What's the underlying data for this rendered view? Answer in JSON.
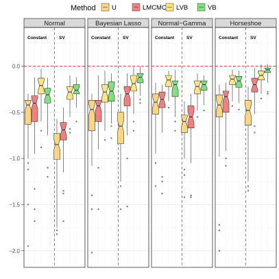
{
  "chart_data": {
    "type": "boxplot",
    "notched": true,
    "facets": [
      "Normal",
      "Bayesian Lasso",
      "Normal−Gamma",
      "Horseshoe"
    ],
    "groups": [
      "Constant",
      "SV"
    ],
    "y_ticks": [
      0.0,
      -0.5,
      -1.0,
      -1.5,
      -2.0
    ],
    "y_tick_labels": [
      "0.0",
      "−0.5",
      "−1.0",
      "−1.5",
      "−2.0"
    ],
    "ylim": [
      -2.18,
      0.42
    ],
    "reference_line": 0.0,
    "legend": {
      "title": "Method",
      "position": "top",
      "entries": [
        {
          "name": "U",
          "color": "#FFD580"
        },
        {
          "name": "LMCMC",
          "color": "#F08080"
        },
        {
          "name": "LVB",
          "color": "#FFE680"
        },
        {
          "name": "VB",
          "color": "#7FE07F"
        }
      ]
    },
    "boxes": [
      {
        "facet": 0,
        "group": 0,
        "method": 0,
        "q1": -0.63,
        "median": -0.42,
        "q3": -0.37,
        "lo": -1.0,
        "hi": -0.3,
        "outliers": [
          -1.05,
          -1.12,
          -1.5,
          -1.95
        ]
      },
      {
        "facet": 0,
        "group": 0,
        "method": 1,
        "q1": -0.6,
        "median": -0.4,
        "q3": -0.32,
        "lo": -0.95,
        "hi": -0.12,
        "outliers": [
          -1.33,
          -1.55,
          -1.68
        ]
      },
      {
        "facet": 0,
        "group": 0,
        "method": 2,
        "q1": -0.3,
        "median": -0.21,
        "q3": -0.13,
        "lo": -0.6,
        "hi": -0.03,
        "outliers": [
          -0.7,
          -0.88
        ]
      },
      {
        "facet": 0,
        "group": 0,
        "method": 3,
        "q1": -0.4,
        "median": -0.31,
        "q3": -0.24,
        "lo": -0.75,
        "hi": -0.13,
        "outliers": [
          -1.1,
          -1.2
        ]
      },
      {
        "facet": 0,
        "group": 1,
        "method": 0,
        "q1": -1.01,
        "median": -0.85,
        "q3": -0.73,
        "lo": -1.75,
        "hi": -0.57,
        "outliers": [
          -1.78,
          -1.82
        ]
      },
      {
        "facet": 0,
        "group": 1,
        "method": 1,
        "q1": -0.8,
        "median": -0.69,
        "q3": -0.61,
        "lo": -1.15,
        "hi": -0.45,
        "outliers": [
          -1.35,
          -1.38,
          -1.68
        ]
      },
      {
        "facet": 0,
        "group": 1,
        "method": 2,
        "q1": -0.36,
        "median": -0.28,
        "q3": -0.22,
        "lo": -0.55,
        "hi": -0.1,
        "outliers": [
          -0.68,
          -0.72
        ]
      },
      {
        "facet": 0,
        "group": 1,
        "method": 3,
        "q1": -0.3,
        "median": -0.26,
        "q3": -0.2,
        "lo": -0.45,
        "hi": -0.12,
        "outliers": [
          -0.6
        ]
      },
      {
        "facet": 1,
        "group": 0,
        "method": 0,
        "q1": -0.7,
        "median": -0.47,
        "q3": -0.37,
        "lo": -1.08,
        "hi": -0.3,
        "outliers": [
          -1.4,
          -1.55,
          -2.02
        ]
      },
      {
        "facet": 1,
        "group": 0,
        "method": 1,
        "q1": -0.6,
        "median": -0.43,
        "q3": -0.37,
        "lo": -0.9,
        "hi": -0.1,
        "outliers": [
          -1.1,
          -1.55
        ]
      },
      {
        "facet": 1,
        "group": 0,
        "method": 2,
        "q1": -0.39,
        "median": -0.28,
        "q3": -0.2,
        "lo": -0.7,
        "hi": -0.05,
        "outliers": [
          -0.8
        ]
      },
      {
        "facet": 1,
        "group": 0,
        "method": 3,
        "q1": -0.38,
        "median": -0.27,
        "q3": -0.17,
        "lo": -0.62,
        "hi": -0.08,
        "outliers": [
          -0.65,
          -0.78
        ]
      },
      {
        "facet": 1,
        "group": 1,
        "method": 0,
        "q1": -0.84,
        "median": -0.65,
        "q3": -0.5,
        "lo": -1.25,
        "hi": -0.3,
        "outliers": [
          -1.3,
          -1.55
        ]
      },
      {
        "facet": 1,
        "group": 1,
        "method": 1,
        "q1": -0.43,
        "median": -0.3,
        "q3": -0.22,
        "lo": -0.75,
        "hi": -0.08,
        "outliers": [
          -1.0,
          -1.52
        ]
      },
      {
        "facet": 1,
        "group": 1,
        "method": 2,
        "q1": -0.27,
        "median": -0.19,
        "q3": -0.1,
        "lo": -0.52,
        "hi": -0.01,
        "outliers": [
          -0.6,
          -0.7
        ]
      },
      {
        "facet": 1,
        "group": 1,
        "method": 3,
        "q1": -0.18,
        "median": -0.12,
        "q3": -0.08,
        "lo": -0.32,
        "hi": 0.0,
        "outliers": [
          -0.36,
          -0.4
        ]
      },
      {
        "facet": 2,
        "group": 0,
        "method": 0,
        "q1": -0.52,
        "median": -0.39,
        "q3": -0.3,
        "lo": -0.95,
        "hi": -0.18,
        "outliers": [
          -1.05,
          -1.3
        ]
      },
      {
        "facet": 2,
        "group": 0,
        "method": 1,
        "q1": -0.45,
        "median": -0.36,
        "q3": -0.28,
        "lo": -0.72,
        "hi": -0.2,
        "outliers": [
          -1.2,
          -1.25,
          -1.38
        ]
      },
      {
        "facet": 2,
        "group": 0,
        "method": 2,
        "q1": -0.22,
        "median": -0.15,
        "q3": -0.1,
        "lo": -0.38,
        "hi": -0.05,
        "outliers": [
          -0.45
        ]
      },
      {
        "facet": 2,
        "group": 0,
        "method": 3,
        "q1": -0.33,
        "median": -0.2,
        "q3": -0.16,
        "lo": -0.55,
        "hi": -0.04,
        "outliers": [
          -0.6,
          -0.7
        ]
      },
      {
        "facet": 2,
        "group": 1,
        "method": 0,
        "q1": -0.72,
        "median": -0.6,
        "q3": -0.53,
        "lo": -1.0,
        "hi": -0.38,
        "outliers": [
          -1.12,
          -1.18,
          -1.42
        ]
      },
      {
        "facet": 2,
        "group": 1,
        "method": 1,
        "q1": -0.67,
        "median": -0.55,
        "q3": -0.43,
        "lo": -1.05,
        "hi": -0.3,
        "outliers": [
          -1.4,
          -1.42
        ]
      },
      {
        "facet": 2,
        "group": 1,
        "method": 2,
        "q1": -0.3,
        "median": -0.22,
        "q3": -0.16,
        "lo": -0.48,
        "hi": -0.08,
        "outliers": [
          -0.55
        ]
      },
      {
        "facet": 2,
        "group": 1,
        "method": 3,
        "q1": -0.26,
        "median": -0.2,
        "q3": -0.16,
        "lo": -0.42,
        "hi": -0.1,
        "outliers": [
          -0.48
        ]
      },
      {
        "facet": 3,
        "group": 0,
        "method": 0,
        "q1": -0.55,
        "median": -0.42,
        "q3": -0.31,
        "lo": -0.98,
        "hi": -0.2,
        "outliers": [
          -1.72,
          -1.78,
          -2.0
        ]
      },
      {
        "facet": 3,
        "group": 0,
        "method": 1,
        "q1": -0.5,
        "median": -0.33,
        "q3": -0.27,
        "lo": -0.92,
        "hi": -0.18,
        "outliers": [
          -1.0,
          -1.08
        ]
      },
      {
        "facet": 3,
        "group": 0,
        "method": 2,
        "q1": -0.2,
        "median": -0.14,
        "q3": -0.1,
        "lo": -0.38,
        "hi": -0.04,
        "outliers": [
          -0.43
        ]
      },
      {
        "facet": 3,
        "group": 0,
        "method": 3,
        "q1": -0.23,
        "median": -0.16,
        "q3": -0.11,
        "lo": -0.4,
        "hi": -0.05,
        "outliers": [
          -0.47
        ]
      },
      {
        "facet": 3,
        "group": 1,
        "method": 0,
        "q1": -0.64,
        "median": -0.48,
        "q3": -0.37,
        "lo": -1.25,
        "hi": -0.22,
        "outliers": [
          -1.3,
          -1.35
        ]
      },
      {
        "facet": 3,
        "group": 1,
        "method": 1,
        "q1": -0.28,
        "median": -0.2,
        "q3": -0.13,
        "lo": -0.52,
        "hi": -0.02,
        "outliers": [
          -0.65,
          -0.72
        ]
      },
      {
        "facet": 3,
        "group": 1,
        "method": 2,
        "q1": -0.15,
        "median": -0.1,
        "q3": -0.05,
        "lo": -0.3,
        "hi": 0.02,
        "outliers": [
          -0.35
        ]
      },
      {
        "facet": 3,
        "group": 1,
        "method": 3,
        "q1": -0.07,
        "median": -0.04,
        "q3": -0.02,
        "lo": -0.18,
        "hi": 0.02,
        "outliers": [
          -0.28,
          -0.3
        ]
      }
    ]
  }
}
